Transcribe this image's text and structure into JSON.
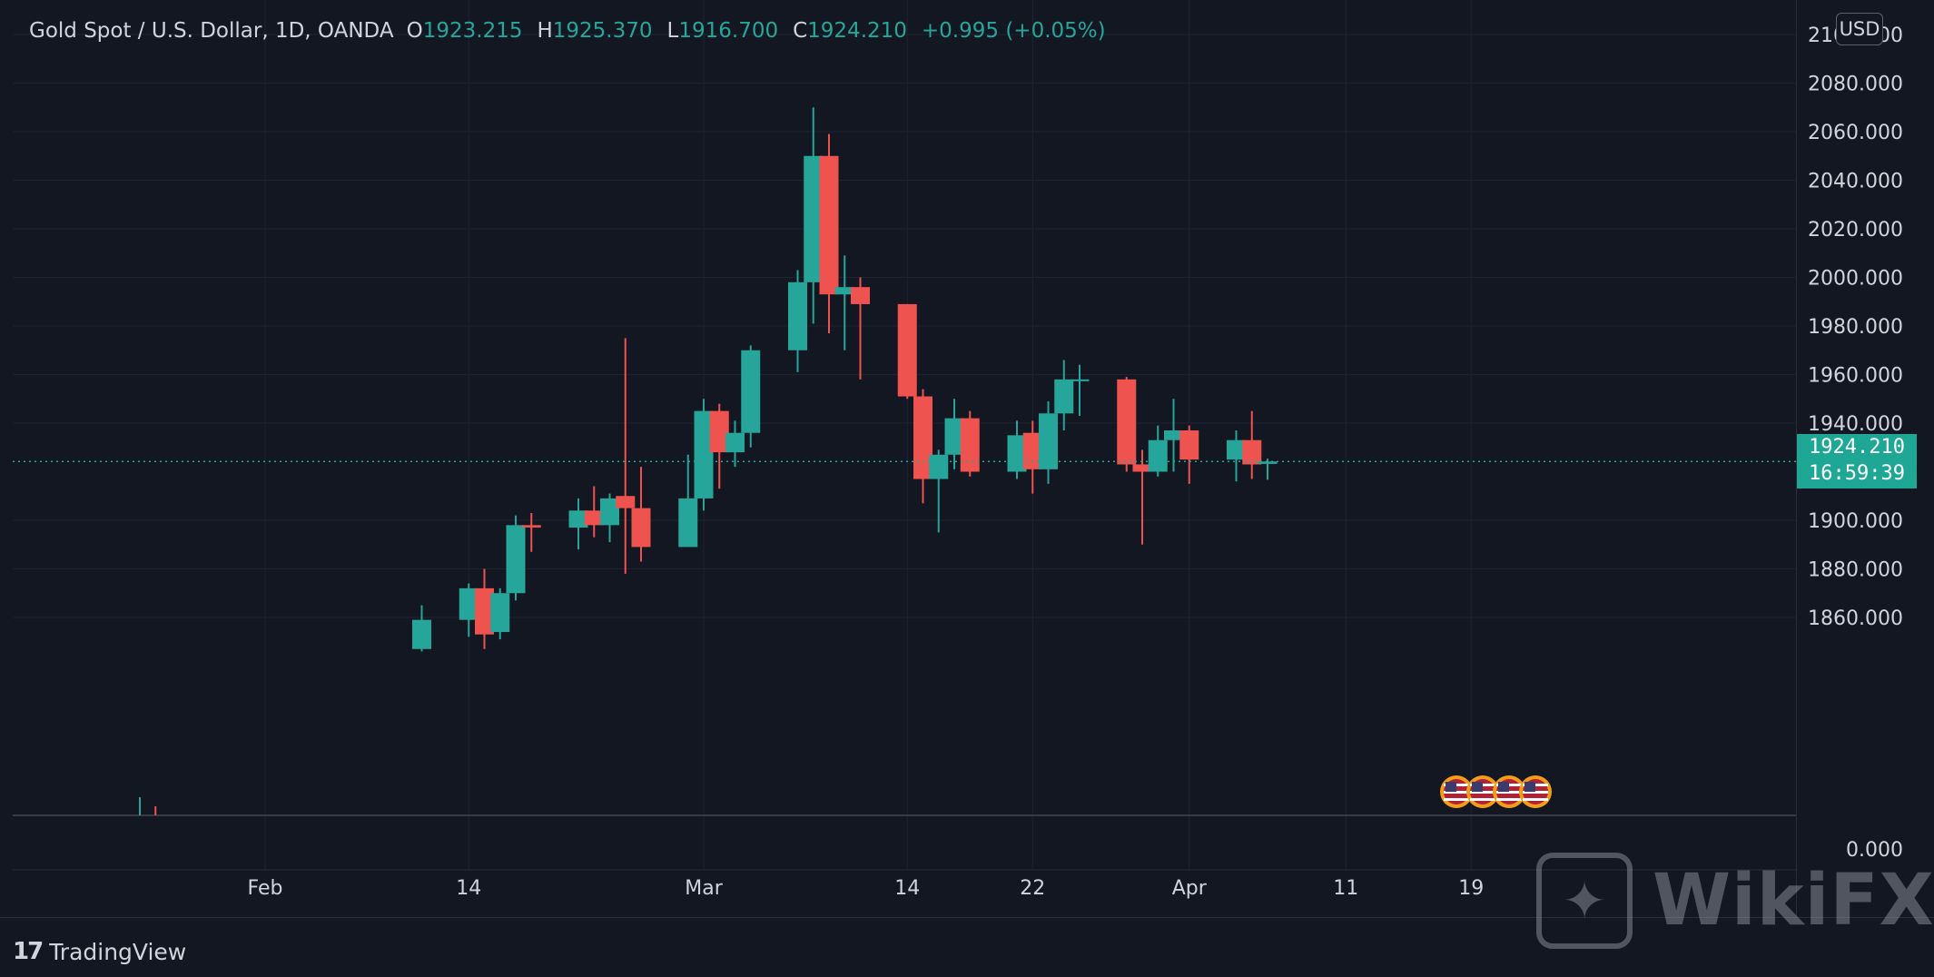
{
  "header": {
    "symbol": "Gold Spot / U.S. Dollar, 1D, OANDA",
    "open_key": "O",
    "open": "1923.215",
    "high_key": "H",
    "high": "1925.370",
    "low_key": "L",
    "low": "1916.700",
    "close_key": "C",
    "close": "1924.210",
    "change": "+0.995 (+0.05%)"
  },
  "currency_badge": "USD",
  "last_price": {
    "price": "1924.210",
    "countdown": "16:59:39"
  },
  "footer": {
    "logo_mark": "17",
    "logo_text": "TradingView"
  },
  "watermark": {
    "text": "WikiFX"
  },
  "colors": {
    "up": "#26a69a",
    "down": "#ef5350",
    "background": "#131722",
    "grid": "#1f2330",
    "text": "#d1d4dc",
    "price_line": "#26a69a"
  },
  "chart_data": {
    "type": "candlestick",
    "price_axis": {
      "min": 1850,
      "max": 2100,
      "ticks": [
        2100,
        2080,
        2060,
        2040,
        2020,
        2000,
        1980,
        1960,
        1940,
        1900,
        1880,
        1860
      ],
      "tick_labels": [
        "2100.000",
        "2080.000",
        "2060.000",
        "2040.000",
        "2020.000",
        "2000.000",
        "1980.000",
        "1960.000",
        "1940.000",
        "1900.000",
        "1880.000",
        "1860.000"
      ]
    },
    "volume_axis": {
      "tick_labels": [
        "0.000"
      ]
    },
    "x_axis": {
      "labels": [
        {
          "label": "Feb",
          "date": "2022-02-01"
        },
        {
          "label": "14",
          "date": "2022-02-14"
        },
        {
          "label": "Mar",
          "date": "2022-03-01"
        },
        {
          "label": "14",
          "date": "2022-03-14"
        },
        {
          "label": "22",
          "date": "2022-03-22"
        },
        {
          "label": "Apr",
          "date": "2022-04-01"
        },
        {
          "label": "11",
          "date": "2022-04-11"
        },
        {
          "label": "19",
          "date": "2022-04-19"
        }
      ]
    },
    "candles": [
      {
        "date": "2022-02-11",
        "open": 1847,
        "high": 1865,
        "low": 1846,
        "close": 1859
      },
      {
        "date": "2022-02-14",
        "open": 1859,
        "high": 1874,
        "low": 1852,
        "close": 1872
      },
      {
        "date": "2022-02-15",
        "open": 1872,
        "high": 1880,
        "low": 1847,
        "close": 1853
      },
      {
        "date": "2022-02-16",
        "open": 1854,
        "high": 1872,
        "low": 1851,
        "close": 1870
      },
      {
        "date": "2022-02-17",
        "open": 1870,
        "high": 1902,
        "low": 1867,
        "close": 1898
      },
      {
        "date": "2022-02-18",
        "open": 1898,
        "high": 1903,
        "low": 1887,
        "close": 1897
      },
      {
        "date": "2022-02-21",
        "open": 1897,
        "high": 1909,
        "low": 1888,
        "close": 1904
      },
      {
        "date": "2022-02-22",
        "open": 1904,
        "high": 1914,
        "low": 1893,
        "close": 1898
      },
      {
        "date": "2022-02-23",
        "open": 1898,
        "high": 1911,
        "low": 1891,
        "close": 1909
      },
      {
        "date": "2022-02-24",
        "open": 1910,
        "high": 1975,
        "low": 1878,
        "close": 1905
      },
      {
        "date": "2022-02-25",
        "open": 1905,
        "high": 1922,
        "low": 1883,
        "close": 1889
      },
      {
        "date": "2022-02-28",
        "open": 1889,
        "high": 1927,
        "low": 1889,
        "close": 1909
      },
      {
        "date": "2022-03-01",
        "open": 1909,
        "high": 1950,
        "low": 1904,
        "close": 1945
      },
      {
        "date": "2022-03-02",
        "open": 1945,
        "high": 1948,
        "low": 1913,
        "close": 1928
      },
      {
        "date": "2022-03-03",
        "open": 1928,
        "high": 1941,
        "low": 1922,
        "close": 1936
      },
      {
        "date": "2022-03-04",
        "open": 1936,
        "high": 1972,
        "low": 1930,
        "close": 1970
      },
      {
        "date": "2022-03-07",
        "open": 1970,
        "high": 2003,
        "low": 1961,
        "close": 1998
      },
      {
        "date": "2022-03-08",
        "open": 1998,
        "high": 2070,
        "low": 1981,
        "close": 2050
      },
      {
        "date": "2022-03-09",
        "open": 2050,
        "high": 2059,
        "low": 1977,
        "close": 1993
      },
      {
        "date": "2022-03-10",
        "open": 1993,
        "high": 2009,
        "low": 1970,
        "close": 1996
      },
      {
        "date": "2022-03-11",
        "open": 1996,
        "high": 2000,
        "low": 1958,
        "close": 1989
      },
      {
        "date": "2022-03-14",
        "open": 1989,
        "high": 1989,
        "low": 1950,
        "close": 1951
      },
      {
        "date": "2022-03-15",
        "open": 1951,
        "high": 1954,
        "low": 1907,
        "close": 1917
      },
      {
        "date": "2022-03-16",
        "open": 1917,
        "high": 1929,
        "low": 1895,
        "close": 1927
      },
      {
        "date": "2022-03-17",
        "open": 1927,
        "high": 1950,
        "low": 1921,
        "close": 1942
      },
      {
        "date": "2022-03-18",
        "open": 1942,
        "high": 1945,
        "low": 1918,
        "close": 1920
      },
      {
        "date": "2022-03-21",
        "open": 1920,
        "high": 1941,
        "low": 1917,
        "close": 1935
      },
      {
        "date": "2022-03-22",
        "open": 1936,
        "high": 1941,
        "low": 1911,
        "close": 1921
      },
      {
        "date": "2022-03-23",
        "open": 1921,
        "high": 1949,
        "low": 1915,
        "close": 1944
      },
      {
        "date": "2022-03-24",
        "open": 1944,
        "high": 1966,
        "low": 1937,
        "close": 1958
      },
      {
        "date": "2022-03-25",
        "open": 1958,
        "high": 1964,
        "low": 1943,
        "close": 1958
      },
      {
        "date": "2022-03-28",
        "open": 1958,
        "high": 1959,
        "low": 1920,
        "close": 1923
      },
      {
        "date": "2022-03-29",
        "open": 1923,
        "high": 1929,
        "low": 1890,
        "close": 1920
      },
      {
        "date": "2022-03-30",
        "open": 1920,
        "high": 1939,
        "low": 1918,
        "close": 1933
      },
      {
        "date": "2022-03-31",
        "open": 1933,
        "high": 1950,
        "low": 1920,
        "close": 1937
      },
      {
        "date": "2022-04-01",
        "open": 1937,
        "high": 1939,
        "low": 1915,
        "close": 1925
      },
      {
        "date": "2022-04-04",
        "open": 1925,
        "high": 1937,
        "low": 1916,
        "close": 1933
      },
      {
        "date": "2022-04-05",
        "open": 1933,
        "high": 1945,
        "low": 1917,
        "close": 1923
      },
      {
        "date": "2022-04-06",
        "open": 1923.215,
        "high": 1925.37,
        "low": 1916.7,
        "close": 1924.21
      }
    ],
    "volume_bars": [
      {
        "date": "2022-01-24",
        "color": "up"
      },
      {
        "date": "2022-01-25",
        "color": "down"
      }
    ],
    "events": [
      {
        "icon": "us-flag-icon"
      },
      {
        "icon": "us-flag-icon"
      },
      {
        "icon": "us-flag-icon"
      },
      {
        "icon": "us-flag-icon"
      }
    ],
    "last_price_line": 1924.21,
    "grid": true
  }
}
